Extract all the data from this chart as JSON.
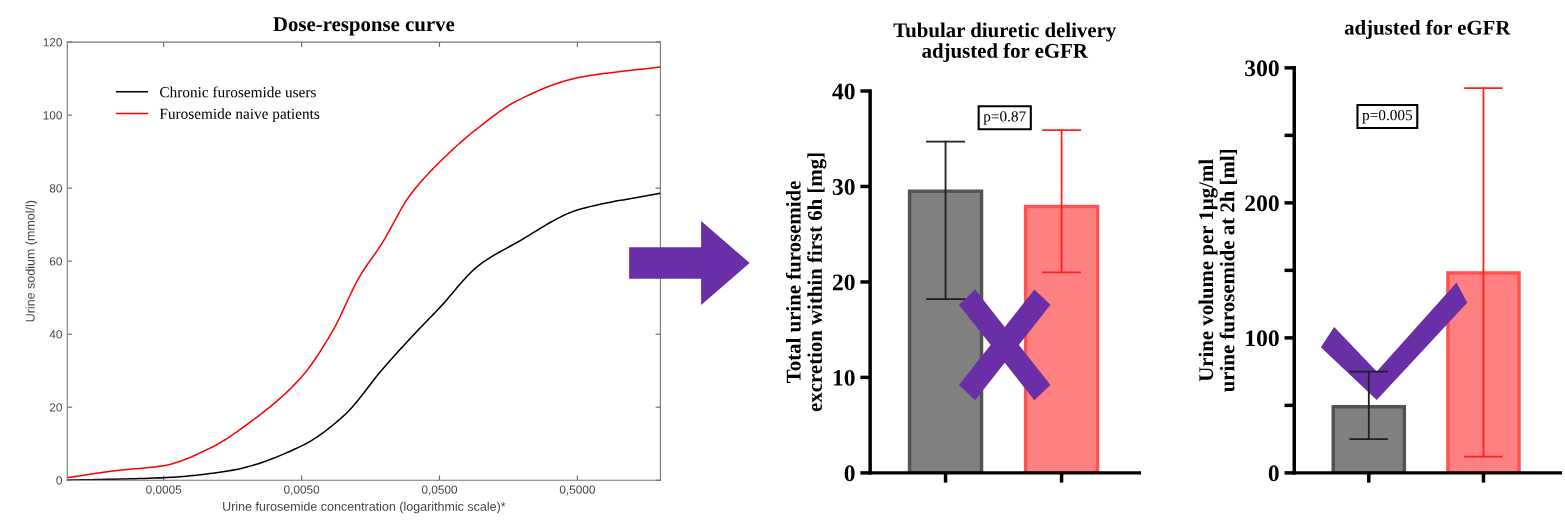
{
  "chart_data": [
    {
      "type": "line",
      "title": "Dose-response curve",
      "xlabel": "Urine furosemide concentration (logarithmic scale)*",
      "ylabel": "Urine sodium (mmol/l)",
      "log": "x",
      "legend": "top left",
      "xlim": [
        0.0001,
        2
      ],
      "xticks": [
        {
          "value": 0.0005,
          "label": "0,0005"
        },
        {
          "value": 0.005,
          "label": "0,0050"
        },
        {
          "value": 0.05,
          "label": "0,0500"
        },
        {
          "value": 0.5,
          "label": "0,5000"
        }
      ],
      "ylim": [
        0,
        120
      ],
      "yticks": [
        0,
        20,
        40,
        60,
        80,
        100,
        120
      ],
      "series": [
        {
          "name": "Chronic furosemide users",
          "color": "#000000",
          "x": [
            0.0001,
            0.0005,
            0.0015,
            0.005,
            0.0102,
            0.0193,
            0.0326,
            0.05,
            0.096,
            0.182,
            0.5,
            2
          ],
          "values": [
            0,
            0.7,
            2.6,
            9.4,
            17.8,
            30.4,
            39.9,
            47.2,
            58.8,
            65.1,
            74,
            78.6
          ]
        },
        {
          "name": "Furosemide naive patients",
          "color": "#ff0000",
          "x": [
            0.0001,
            0.000222,
            0.0005,
            0.0011,
            0.00208,
            0.005,
            0.0084,
            0.0131,
            0.0193,
            0.0301,
            0.05,
            0.096,
            0.182,
            0.5,
            2
          ],
          "values": [
            0.7,
            2.6,
            4.0,
            8.9,
            15.7,
            28.3,
            40.9,
            55.6,
            65.1,
            77.7,
            87.1,
            96.6,
            103.9,
            110.2,
            113.2
          ]
        }
      ]
    },
    {
      "type": "bar",
      "title": "Tubular diuretic delivery\nadjusted for eGFR",
      "ylabel": "Total urine furosemide\nexcretion within first 6h [mg]",
      "categories": [
        null,
        null
      ],
      "values": [
        29.5,
        27.9
      ],
      "colors": [
        "#808080",
        "#ff8080"
      ],
      "errors": [
        [
          18.2,
          34.7
        ],
        [
          21,
          35.9
        ]
      ],
      "ylim": [
        0,
        40
      ],
      "yticks": [
        0,
        10,
        20,
        30,
        40
      ],
      "annotations": [
        "p=0.87"
      ]
    },
    {
      "type": "bar",
      "title": "adjusted for eGFR",
      "ylabel": "Urine volume per 1µg/ml\nurine furosemide at 2h [ml]",
      "categories": [
        null,
        null
      ],
      "values": [
        49,
        148
      ],
      "colors": [
        "#808080",
        "#ff8080"
      ],
      "errors": [
        [
          25,
          75
        ],
        [
          12,
          285
        ]
      ],
      "ylim": [
        0,
        300
      ],
      "yticks": [
        0,
        {
          "value": 50,
          "label": null
        },
        100,
        {
          "value": 150,
          "label": null
        },
        200,
        {
          "value": 250,
          "label": null
        },
        300
      ],
      "annotations": [
        "p=0.005"
      ]
    }
  ]
}
